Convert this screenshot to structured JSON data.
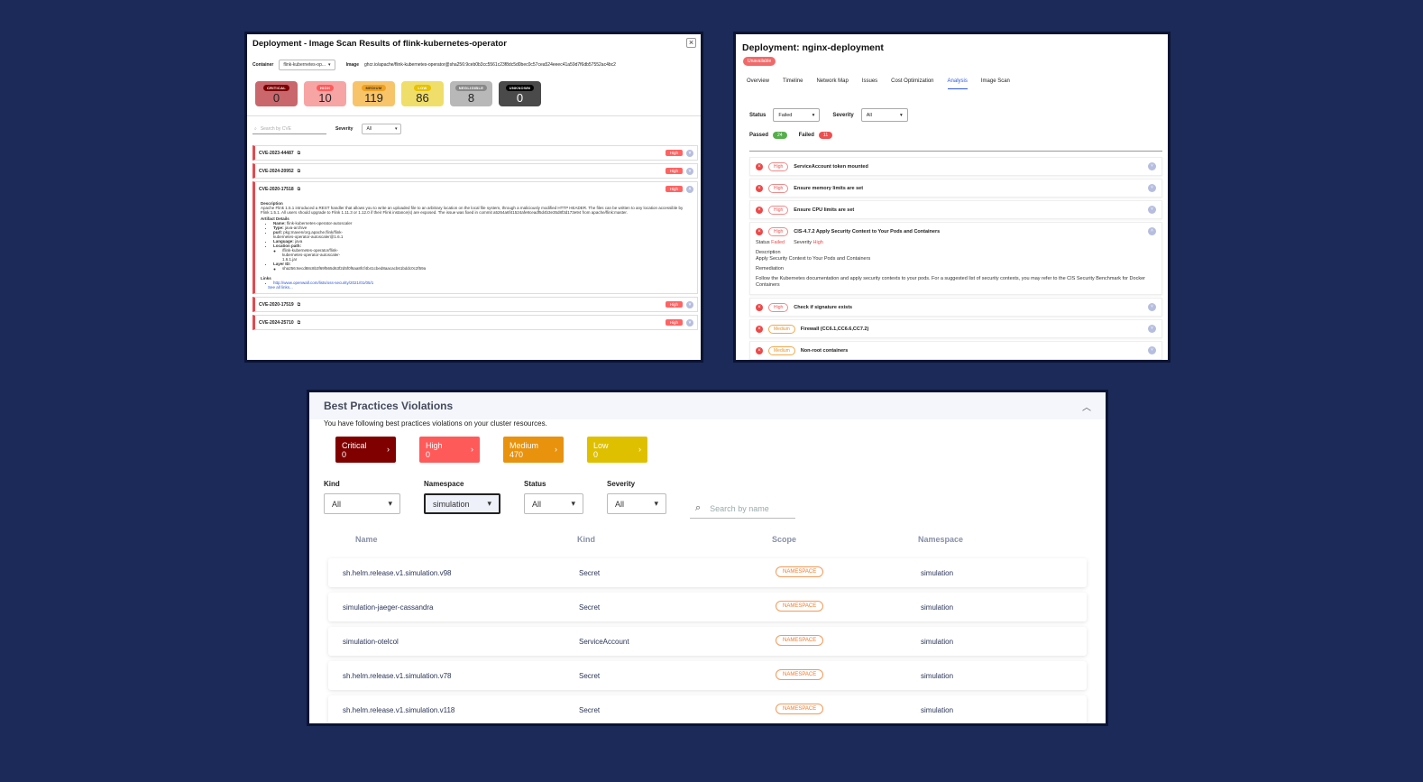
{
  "scan": {
    "title": "Deployment - Image Scan Results of flink-kubernetes-operator",
    "container_label": "Container",
    "container_value": "flink-kubernetes-op...",
    "image_label": "Image",
    "image_value": "ghcr.io/apache/flink-kubernetes-operator@sha256:9ceb0b3cc5561c23f8dc5d0bec0c57cea524eeec41a59d7f6db57552ac4bc2",
    "severities": [
      {
        "label": "CRITICAL",
        "count": "0",
        "bg": "#c9676c",
        "badge_bg": "#7b0000",
        "badge_fg": "#fff"
      },
      {
        "label": "HIGH",
        "count": "10",
        "bg": "#f7a4a4",
        "badge_bg": "#ff5a5a",
        "badge_fg": "#fff"
      },
      {
        "label": "MEDIUM",
        "count": "119",
        "bg": "#f8c46a",
        "badge_bg": "#f0a020",
        "badge_fg": "#333"
      },
      {
        "label": "LOW",
        "count": "86",
        "bg": "#f0de6a",
        "badge_bg": "#e6c200",
        "badge_fg": "#fff"
      },
      {
        "label": "NEGLIGIBLE",
        "count": "8",
        "bg": "#b8b8b8",
        "badge_bg": "#888",
        "badge_fg": "#fff"
      },
      {
        "label": "UNKNOWN",
        "count": "0",
        "bg": "#4a4a4a",
        "badge_bg": "#000",
        "badge_fg": "#fff"
      }
    ],
    "search_placeholder": "Search by CVE",
    "severity_label": "Severity",
    "severity_value": "All",
    "cves": [
      {
        "id": "CVE-2023-44487",
        "sev": "High"
      },
      {
        "id": "CVE-2024-20952",
        "sev": "High"
      }
    ],
    "expanded": {
      "id": "CVE-2020-17518",
      "sev": "High",
      "desc_label": "Description",
      "desc": "Apache Flink 1.5.1 introduced a REST handler that allows you to write an uploaded file to an arbitrary location on the local file system, through a maliciously modified HTTP HEADER. The files can be written to any location accessible by Flink 1.5.1. All users should upgrade to Flink 1.11.3 or 1.12.0 if their Flink instance(s) are exposed. The issue was fixed in commit a5264a6f41524afe8ceadf5d4b3e35d8f3d173e94 from apache/flink:master.",
      "artifact_label": "Artifact Details",
      "name_k": "Name:",
      "name_v": "flink-kubernetes-operator-autoscaler",
      "type_k": "Type:",
      "type_v": "java-archive",
      "purl_k": "purl:",
      "purl_v": "pkg:maven/org.apache.flink/flink-kubernetes-operator-autoscaler@1.6.1",
      "lang_k": "Language:",
      "lang_v": "java",
      "loc_k": "Location path:",
      "loc_v": "/flink-kubernetes-operator/flink-kubernetes-operator-autoscaler-1.6.1.jar",
      "layer_k": "Layer ID:",
      "layer_v": "sha256:6ecd88c8b3f69f565d63f2d5f0f6aa8fcf4b41cbed8aacacb61bddc0c2f59a",
      "links_label": "Links",
      "link": "http://www.openwall.com/lists/oss-security/2021/01/05/1",
      "see_all": "See all links..."
    },
    "cves_after": [
      {
        "id": "CVE-2020-17519",
        "sev": "High"
      },
      {
        "id": "CVE-2024-25710",
        "sev": "High"
      }
    ]
  },
  "analysis": {
    "title": "Deployment: nginx-deployment",
    "status_badge": "Unavailable",
    "tabs": [
      "Overview",
      "Timeline",
      "Network Map",
      "Issues",
      "Cost Optimization",
      "Analysis",
      "Image Scan"
    ],
    "active_tab": "Analysis",
    "status_label": "Status",
    "status_value": "Failed",
    "severity_label": "Severity",
    "severity_value": "All",
    "passed_label": "Passed",
    "passed_count": "24",
    "failed_label": "Failed",
    "failed_count": "11",
    "checks_before": [
      {
        "sev": "High",
        "name": "ServiceAccount token mounted"
      },
      {
        "sev": "High",
        "name": "Ensure memory limits are set"
      },
      {
        "sev": "High",
        "name": "Ensure CPU limits are set"
      }
    ],
    "expanded": {
      "sev": "High",
      "name": "CIS-4.7.2 Apply Security Context to Your Pods and Containers",
      "status_k": "Status",
      "status_v": "Failed",
      "severity_k": "Severity",
      "severity_v": "High",
      "desc_label": "Description",
      "desc": "Apply Security Context to Your Pods and Containers",
      "rem_label": "Remediation",
      "rem": "Follow the Kubernetes documentation and apply security contexts to your pods. For a suggested list of security contexts, you may refer to the CIS Security Benchmark for Docker Containers"
    },
    "checks_after": [
      {
        "sev": "High",
        "name": "Check if signature exists"
      },
      {
        "sev": "Medium",
        "name": "Firewall (CC6.1,CC6.6,CC7.2)"
      },
      {
        "sev": "Medium",
        "name": "Non-root containers"
      }
    ]
  },
  "bp": {
    "title": "Best Practices Violations",
    "subtitle": "You have following best practices violations on your cluster resources.",
    "cards": [
      {
        "label": "Critical",
        "count": "0",
        "color": "#800000"
      },
      {
        "label": "High",
        "count": "0",
        "color": "#ff5a5a"
      },
      {
        "label": "Medium",
        "count": "470",
        "color": "#e8920e"
      },
      {
        "label": "Low",
        "count": "0",
        "color": "#dfc000"
      }
    ],
    "filters": {
      "kind_label": "Kind",
      "kind_value": "All",
      "ns_label": "Namespace",
      "ns_value": "simulation",
      "status_label": "Status",
      "status_value": "All",
      "sev_label": "Severity",
      "sev_value": "All"
    },
    "search_placeholder": "Search by name",
    "columns": [
      "Name",
      "Kind",
      "Scope",
      "Namespace"
    ],
    "rows": [
      {
        "name": "sh.helm.release.v1.simulation.v98",
        "kind": "Secret",
        "scope": "NAMESPACE",
        "ns": "simulation"
      },
      {
        "name": "simulation-jaeger-cassandra",
        "kind": "Secret",
        "scope": "NAMESPACE",
        "ns": "simulation"
      },
      {
        "name": "simulation-otelcol",
        "kind": "ServiceAccount",
        "scope": "NAMESPACE",
        "ns": "simulation"
      },
      {
        "name": "sh.helm.release.v1.simulation.v78",
        "kind": "Secret",
        "scope": "NAMESPACE",
        "ns": "simulation"
      },
      {
        "name": "sh.helm.release.v1.simulation.v118",
        "kind": "Secret",
        "scope": "NAMESPACE",
        "ns": "simulation"
      }
    ]
  }
}
